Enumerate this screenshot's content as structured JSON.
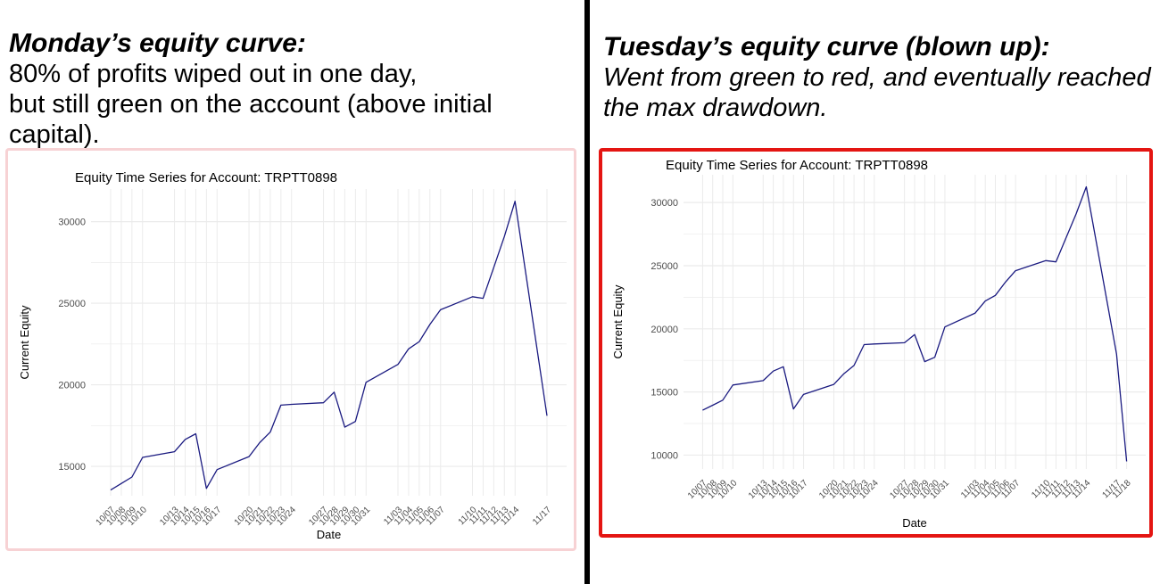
{
  "captions": {
    "left": {
      "title": "Monday’s equity curve:",
      "line1": "80% of profits wiped out in one day,",
      "line2": "but still green on the account (above initial capital)."
    },
    "right": {
      "title": "Tuesday’s equity curve (blown up):",
      "line1": "Went from green to red, and eventually reached",
      "line2": "the max drawdown."
    }
  },
  "colors": {
    "line": "#1a1a80",
    "grid": "#ebebeb",
    "left_border": "#f7d2d4",
    "right_border": "#e41512"
  },
  "chart_data": [
    {
      "type": "line",
      "title": "Equity Time Series for Account: TRPTT0898",
      "xlabel": "Date",
      "ylabel": "Current Equity",
      "ylim": [
        13200,
        32000
      ],
      "yticks": [
        15000,
        20000,
        25000,
        30000
      ],
      "xlim": [
        "10/07",
        "11/17"
      ],
      "x_tick_labels": [
        "10/07",
        "10/08",
        "10/09",
        "10/10",
        "10/13",
        "10/14",
        "10/15",
        "10/16",
        "10/17",
        "10/20",
        "10/21",
        "10/22",
        "10/23",
        "10/24",
        "10/27",
        "10/28",
        "10/29",
        "10/30",
        "10/31",
        "11/03",
        "11/04",
        "11/05",
        "11/06",
        "11/07",
        "11/10",
        "11/11",
        "11/12",
        "11/13",
        "11/14",
        "11/17"
      ],
      "grid": true,
      "series": [
        {
          "x": [
            "10/07",
            "10/08",
            "10/09",
            "10/10",
            "10/13",
            "10/14",
            "10/15",
            "10/16",
            "10/17",
            "10/20",
            "10/21",
            "10/22",
            "10/23",
            "10/24",
            "10/27",
            "10/28",
            "10/29",
            "10/30",
            "10/31",
            "11/03",
            "11/04",
            "11/05",
            "11/06",
            "11/07",
            "11/10",
            "11/11",
            "11/12",
            "11/13",
            "11/14",
            "11/17"
          ],
          "values": [
            13550,
            13950,
            14350,
            15550,
            15900,
            16650,
            17000,
            13650,
            14800,
            15600,
            16450,
            17100,
            18750,
            18800,
            18900,
            19550,
            17400,
            17750,
            20150,
            21250,
            22200,
            22650,
            23700,
            24600,
            25400,
            25300,
            27200,
            29100,
            31250,
            18100
          ]
        }
      ]
    },
    {
      "type": "line",
      "title": "Equity Time Series for Account: TRPTT0898",
      "xlabel": "Date",
      "ylabel": "Current Equity",
      "ylim": [
        8900,
        32200
      ],
      "yticks": [
        10000,
        15000,
        20000,
        25000,
        30000
      ],
      "xlim": [
        "10/07",
        "11/18"
      ],
      "x_tick_labels": [
        "10/07",
        "10/08",
        "10/09",
        "10/10",
        "10/13",
        "10/14",
        "10/15",
        "10/16",
        "10/17",
        "10/20",
        "10/21",
        "10/22",
        "10/23",
        "10/24",
        "10/27",
        "10/28",
        "10/29",
        "10/30",
        "10/31",
        "11/03",
        "11/04",
        "11/05",
        "11/06",
        "11/07",
        "11/10",
        "11/11",
        "11/12",
        "11/13",
        "11/14",
        "11/17",
        "11/18"
      ],
      "grid": true,
      "series": [
        {
          "x": [
            "10/07",
            "10/08",
            "10/09",
            "10/10",
            "10/13",
            "10/14",
            "10/15",
            "10/16",
            "10/17",
            "10/20",
            "10/21",
            "10/22",
            "10/23",
            "10/24",
            "10/27",
            "10/28",
            "10/29",
            "10/30",
            "10/31",
            "11/03",
            "11/04",
            "11/05",
            "11/06",
            "11/07",
            "11/10",
            "11/11",
            "11/12",
            "11/13",
            "11/14",
            "11/17",
            "11/18"
          ],
          "values": [
            13550,
            13950,
            14350,
            15550,
            15900,
            16650,
            17000,
            13650,
            14800,
            15600,
            16450,
            17100,
            18750,
            18800,
            18900,
            19550,
            17400,
            17750,
            20150,
            21250,
            22200,
            22650,
            23700,
            24600,
            25400,
            25300,
            27200,
            29100,
            31250,
            18000,
            9500
          ]
        }
      ]
    }
  ]
}
